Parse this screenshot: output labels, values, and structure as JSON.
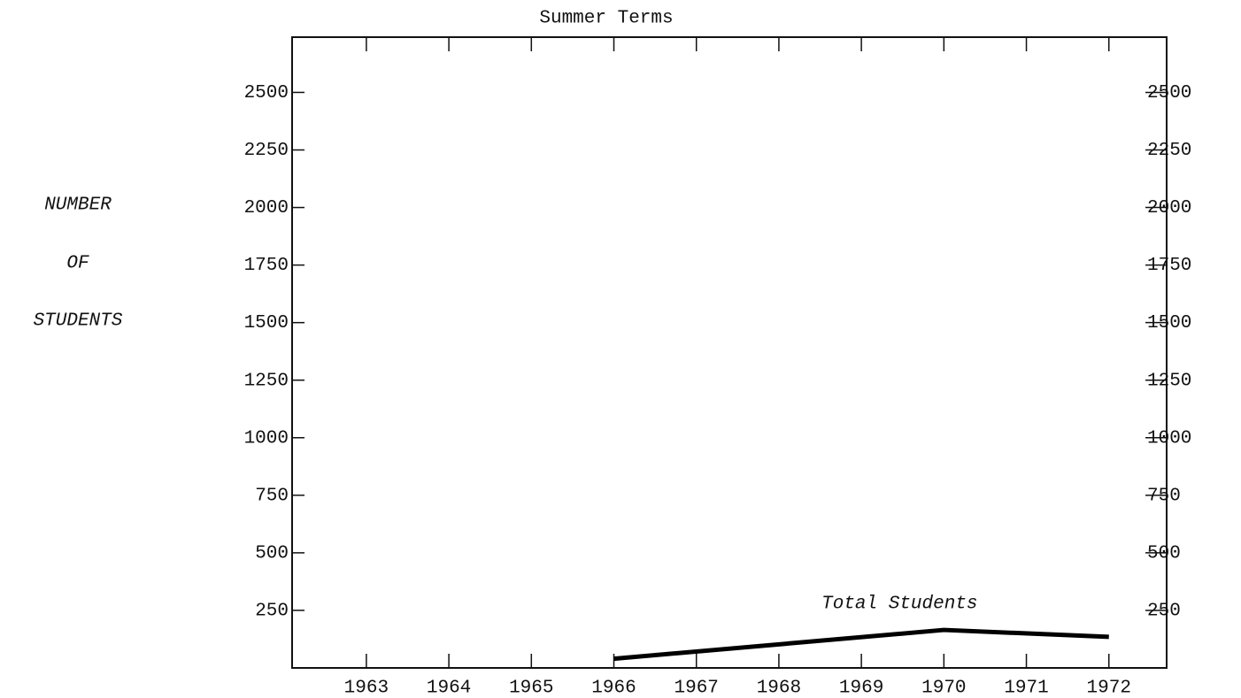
{
  "chart_data": {
    "type": "line",
    "title": "Summer Terms",
    "ylabel": [
      "NUMBER",
      "OF",
      "STUDENTS"
    ],
    "x": [
      1966,
      1970,
      1972
    ],
    "series": [
      {
        "name": "Total Students",
        "color": "#000000",
        "values": [
          40,
          165,
          135
        ]
      }
    ],
    "xlim": [
      1962.1,
      1972.7
    ],
    "xticks": [
      1963,
      1964,
      1965,
      1966,
      1967,
      1968,
      1969,
      1970,
      1971,
      1972
    ],
    "ylim": [
      0,
      2740
    ],
    "yticks": [
      250,
      500,
      750,
      1000,
      1250,
      1500,
      1750,
      2000,
      2250,
      2500
    ],
    "y2lim": [
      0,
      2740
    ],
    "y2ticks": [
      250,
      500,
      750,
      1000,
      1250,
      1500,
      1750,
      2000,
      2250,
      2500
    ],
    "grid": false
  }
}
